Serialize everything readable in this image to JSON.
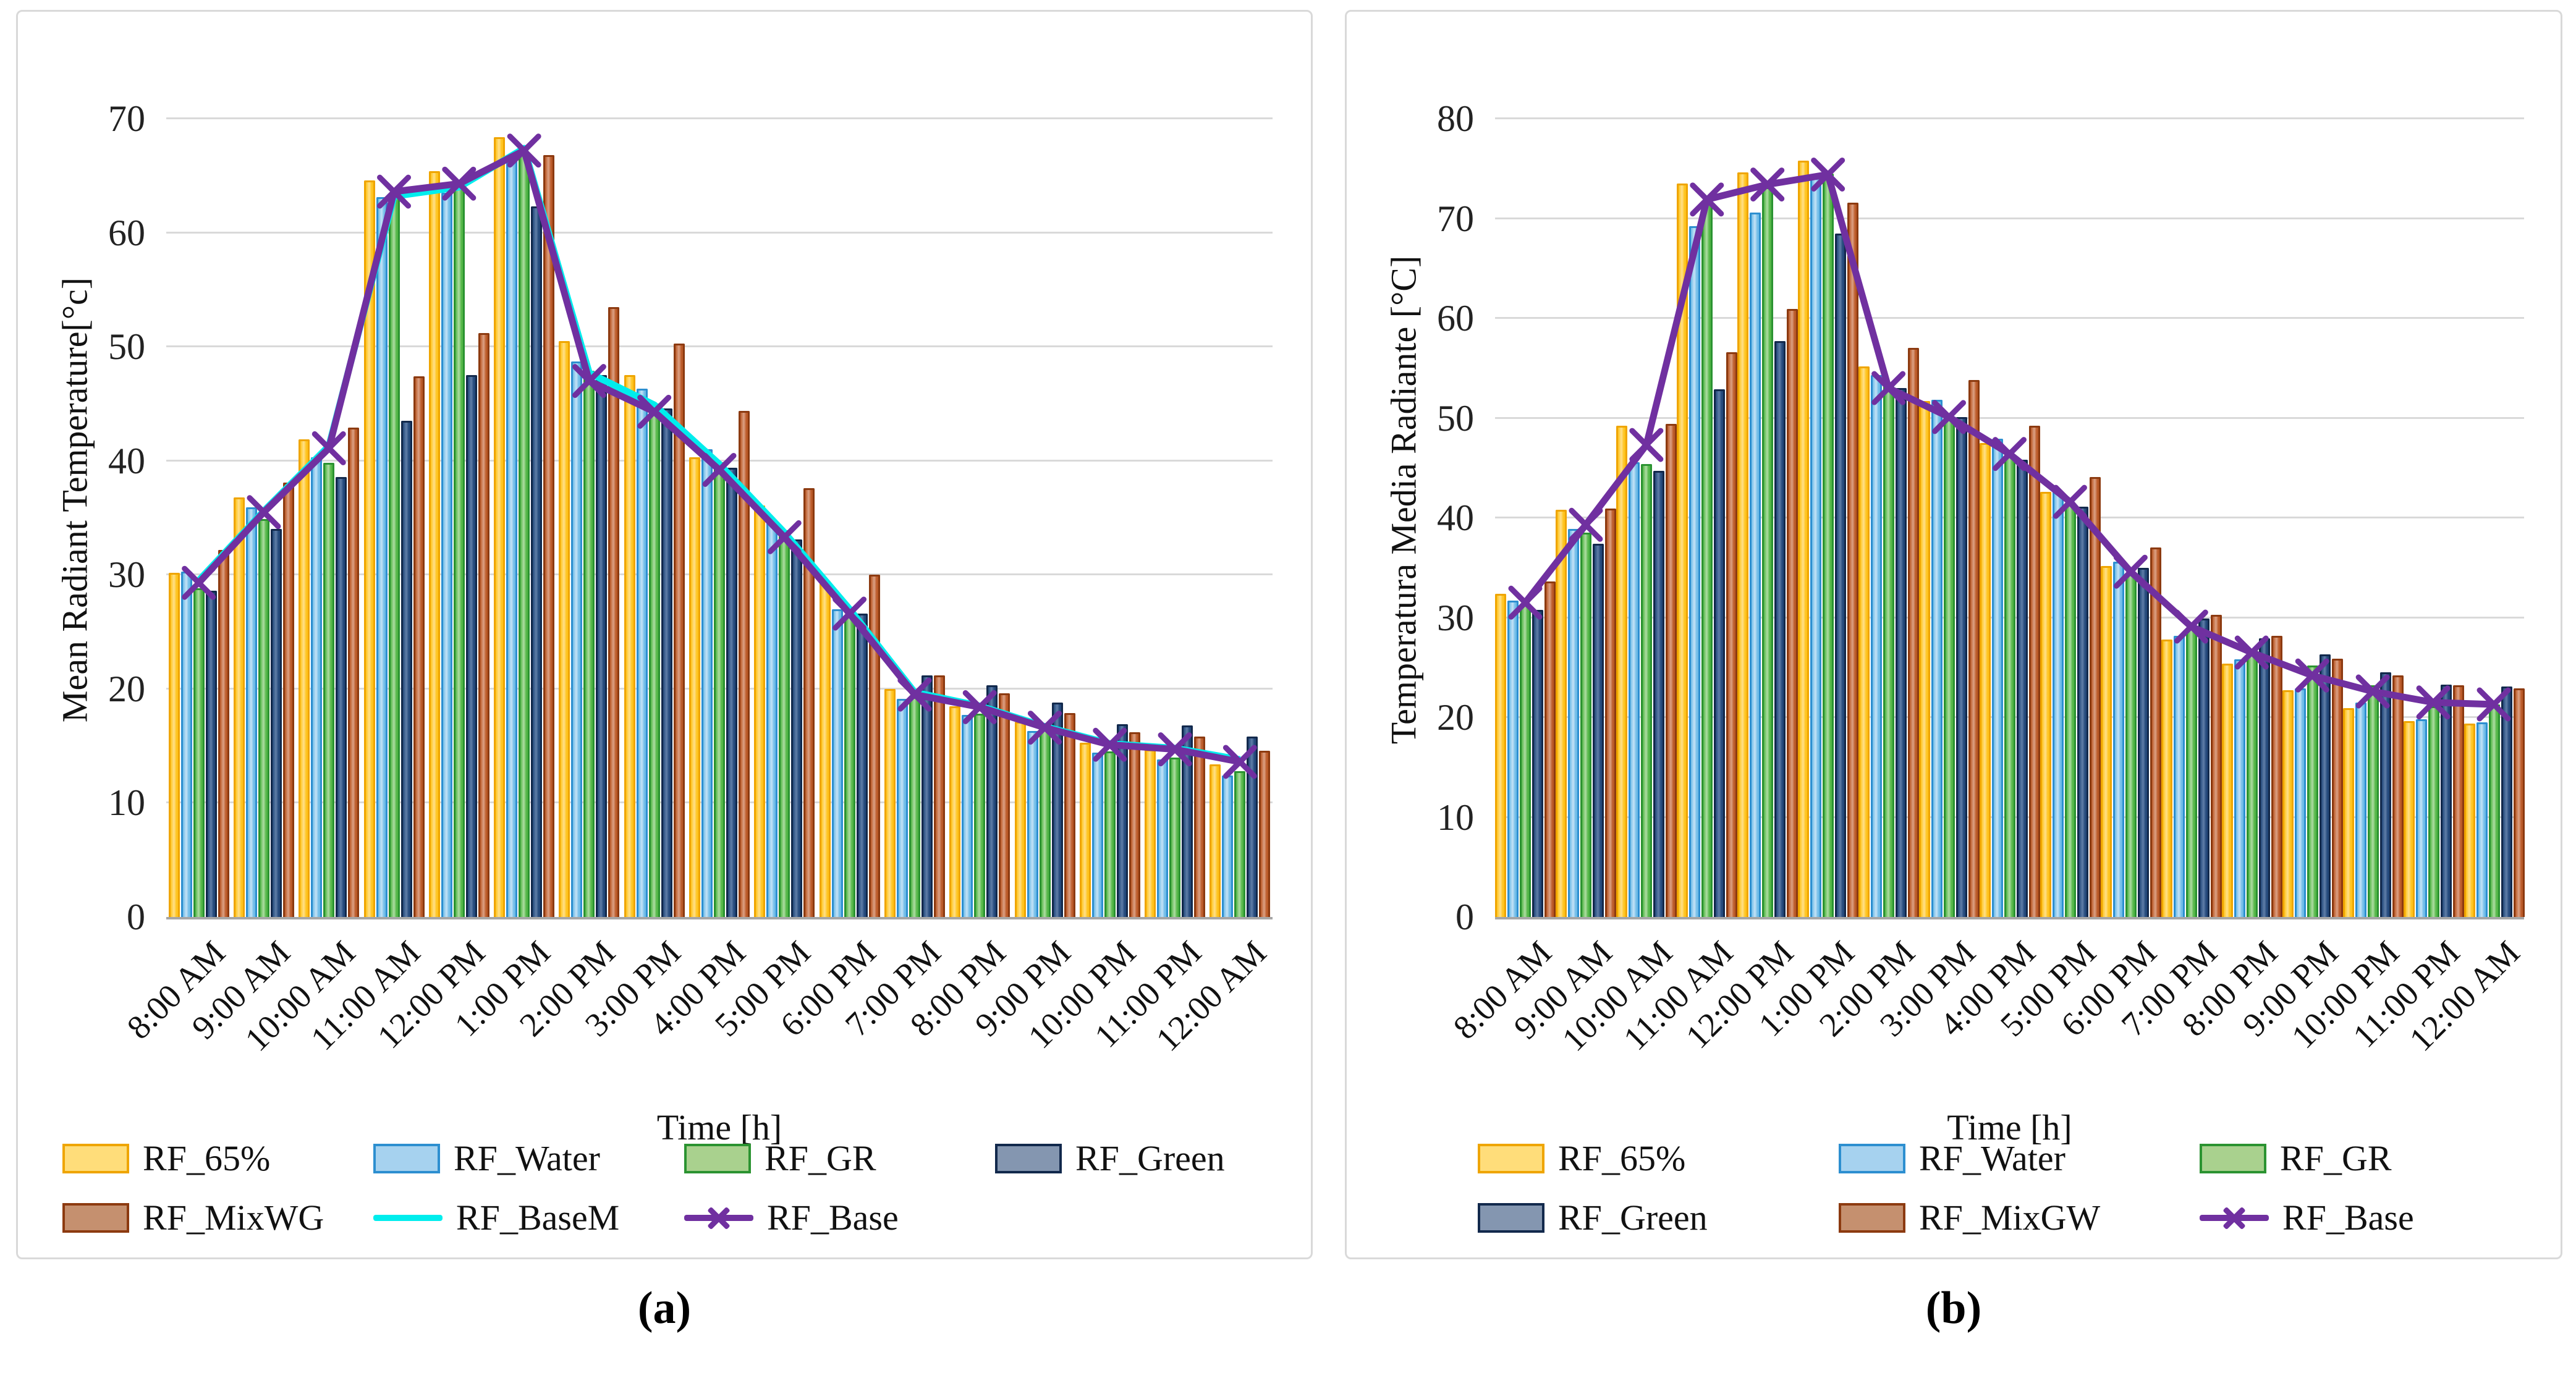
{
  "figure": {
    "background": "#ffffff",
    "panel_border_color": "#d9d9d9",
    "gridline_color": "#d9d9d9",
    "axis_line_color": "#a6a6a6"
  },
  "chart_data": [
    {
      "id": "a",
      "type": "bar",
      "caption": "(a)",
      "ylabel": "Mean Radiant Temperature[°c]",
      "xlabel": "Time [h]",
      "ylim": [
        0,
        70
      ],
      "yticks": [
        0,
        10,
        20,
        30,
        40,
        50,
        60,
        70
      ],
      "grid": true,
      "legend_position": "bottom",
      "categories": [
        "8:00 AM",
        "9:00 AM",
        "10:00 AM",
        "11:00 AM",
        "12:00 PM",
        "1:00 PM",
        "2:00 PM",
        "3:00 PM",
        "4:00 PM",
        "5:00 PM",
        "6:00 PM",
        "7:00 PM",
        "8:00 PM",
        "9:00 PM",
        "10:00 PM",
        "11:00 PM",
        "12:00 AM"
      ],
      "legend_rows": [
        [
          "RF_65%",
          "RF_Water",
          "RF_GR",
          "RF_Green"
        ],
        [
          "RF_MixWG",
          "RF_BaseM",
          "RF_Base"
        ]
      ],
      "series": [
        {
          "name": "RF_65%",
          "kind": "bar",
          "fill": "#FFC41E",
          "fill_light": "#FFE08A",
          "border": "#EFA500",
          "legend_fill": "#FFDD7A",
          "values": [
            30.2,
            36.8,
            41.9,
            64.6,
            65.4,
            68.4,
            50.5,
            47.5,
            40.3,
            36.1,
            29.5,
            20.0,
            18.5,
            17.1,
            15.3,
            14.7,
            13.4
          ]
        },
        {
          "name": "RF_Water",
          "kind": "bar",
          "fill": "#6FBCE8",
          "fill_light": "#C4E2F6",
          "border": "#2D8FD0",
          "legend_fill": "#A6D2EF",
          "values": [
            30.3,
            35.9,
            40.3,
            63.1,
            63.5,
            66.5,
            48.7,
            46.3,
            41.0,
            34.8,
            27.0,
            19.1,
            17.7,
            16.3,
            14.4,
            13.8,
            12.4
          ]
        },
        {
          "name": "RF_GR",
          "kind": "bar",
          "fill": "#53B747",
          "fill_light": "#AEDCA2",
          "border": "#2B9331",
          "legend_fill": "#A9D18E",
          "values": [
            28.8,
            34.9,
            39.8,
            63.5,
            64.0,
            67.0,
            47.9,
            45.0,
            39.9,
            33.9,
            26.4,
            19.3,
            17.8,
            16.4,
            14.5,
            14.0,
            12.8
          ]
        },
        {
          "name": "RF_Green",
          "kind": "bar",
          "fill": "#24497B",
          "fill_light": "#5F7EA8",
          "border": "#12294C",
          "legend_fill": "#8496B0",
          "values": [
            28.6,
            34.0,
            38.6,
            43.5,
            47.5,
            62.3,
            47.5,
            44.6,
            39.4,
            33.1,
            26.6,
            21.2,
            20.3,
            18.8,
            16.9,
            16.8,
            15.8
          ]
        },
        {
          "name": "RF_MixWG",
          "kind": "bar",
          "fill": "#BB5A28",
          "fill_light": "#DCA184",
          "border": "#8C3A10",
          "legend_fill": "#C5906F",
          "values": [
            32.2,
            38.1,
            42.9,
            47.4,
            51.2,
            66.8,
            53.5,
            50.3,
            44.4,
            37.6,
            30.0,
            21.2,
            19.6,
            17.9,
            16.2,
            15.8,
            14.6
          ]
        },
        {
          "name": "RF_BaseM",
          "kind": "line",
          "color": "#00EDED",
          "values": [
            29.5,
            35.6,
            41.3,
            63.2,
            64.0,
            67.4,
            47.7,
            44.9,
            39.7,
            33.7,
            27.0,
            19.7,
            18.5,
            16.7,
            15.2,
            14.8,
            13.8
          ]
        },
        {
          "name": "RF_Base",
          "kind": "line",
          "marker": "x",
          "color": "#7030A0",
          "values": [
            29.3,
            35.5,
            41.1,
            63.6,
            64.3,
            67.2,
            47.0,
            44.3,
            39.2,
            33.3,
            26.6,
            19.5,
            18.4,
            16.6,
            15.1,
            14.7,
            13.6
          ]
        }
      ]
    },
    {
      "id": "b",
      "type": "bar",
      "caption": "(b)",
      "ylabel": "Temperatura Media Radiante [°C]",
      "xlabel": "Time [h]",
      "ylim": [
        0,
        80
      ],
      "yticks": [
        0,
        10,
        20,
        30,
        40,
        50,
        60,
        70,
        80
      ],
      "grid": true,
      "legend_position": "bottom",
      "categories": [
        "8:00 AM",
        "9:00 AM",
        "10:00 AM",
        "11:00 AM",
        "12:00 PM",
        "1:00 PM",
        "2:00 PM",
        "3:00 PM",
        "4:00 PM",
        "5:00 PM",
        "6:00 PM",
        "7:00 PM",
        "8:00 PM",
        "9:00 PM",
        "10:00 PM",
        "11:00 PM",
        "12:00 AM"
      ],
      "legend_rows": [
        [
          "RF_65%",
          "RF_Water",
          "RF_GR"
        ],
        [
          "RF_Green",
          "RF_MixGW",
          "RF_Base"
        ]
      ],
      "series": [
        {
          "name": "RF_65%",
          "kind": "bar",
          "fill": "#FFC41E",
          "fill_light": "#FFE08A",
          "border": "#EFA500",
          "legend_fill": "#FFDD7A",
          "values": [
            32.4,
            40.8,
            49.2,
            73.5,
            74.6,
            75.8,
            55.2,
            51.7,
            47.5,
            42.6,
            35.2,
            27.8,
            25.4,
            22.7,
            20.9,
            19.6,
            19.4
          ]
        },
        {
          "name": "RF_Water",
          "kind": "bar",
          "fill": "#6FBCE8",
          "fill_light": "#C4E2F6",
          "border": "#2D8FD0",
          "legend_fill": "#A6D2EF",
          "values": [
            31.7,
            38.9,
            45.6,
            69.2,
            70.6,
            74.1,
            54.3,
            51.8,
            47.9,
            42.6,
            35.6,
            28.2,
            25.8,
            22.9,
            21.5,
            19.8,
            19.5
          ]
        },
        {
          "name": "RF_GR",
          "kind": "bar",
          "fill": "#53B747",
          "fill_light": "#AEDCA2",
          "border": "#2B9331",
          "legend_fill": "#A9D18E",
          "values": [
            31.4,
            38.5,
            45.4,
            71.6,
            73.1,
            74.5,
            53.2,
            49.9,
            46.4,
            41.4,
            34.4,
            28.9,
            26.9,
            25.2,
            23.2,
            21.1,
            21.3
          ]
        },
        {
          "name": "RF_Green",
          "kind": "bar",
          "fill": "#24497B",
          "fill_light": "#5F7EA8",
          "border": "#12294C",
          "legend_fill": "#8496B0",
          "values": [
            30.8,
            37.4,
            44.7,
            52.9,
            57.7,
            68.5,
            53.0,
            50.1,
            45.8,
            41.1,
            35.0,
            29.9,
            27.9,
            26.3,
            24.5,
            23.3,
            23.1
          ]
        },
        {
          "name": "RF_MixGW",
          "kind": "bar",
          "fill": "#BB5A28",
          "fill_light": "#DCA184",
          "border": "#8C3A10",
          "legend_fill": "#C5906F",
          "values": [
            33.6,
            40.9,
            49.4,
            56.6,
            60.9,
            71.6,
            57.0,
            53.8,
            49.2,
            44.1,
            37.0,
            30.3,
            28.2,
            25.9,
            24.2,
            23.2,
            22.9
          ]
        },
        {
          "name": "RF_Base",
          "kind": "line",
          "marker": "x",
          "color": "#7030A0",
          "values": [
            31.5,
            39.3,
            47.3,
            71.9,
            73.4,
            74.4,
            53.0,
            50.1,
            46.4,
            41.6,
            34.6,
            29.1,
            26.5,
            24.2,
            22.6,
            21.5,
            21.3
          ]
        }
      ]
    }
  ]
}
